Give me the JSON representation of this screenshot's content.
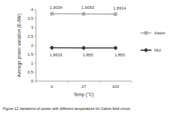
{
  "chart_data": {
    "type": "line",
    "stacked": true,
    "data_labels": true,
    "grid": false,
    "legend": "right",
    "caption": "Figure 12 Variations of power with different temperature for Galois field circuit.",
    "x_label": "Temp (°C)",
    "y_label": "Average power variation (E-6W)",
    "categories": [
      "0",
      "27",
      "100"
    ],
    "ylim": [
      0,
      4
    ],
    "yticks": [
      0,
      0.5,
      1,
      1.5,
      2,
      2.5,
      3,
      3.5,
      4
    ],
    "series": [
      {
        "name": "Mul",
        "color": "#333333",
        "marker": "diamond",
        "values": [
          1.8633,
          1.855,
          1.855
        ]
      },
      {
        "name": "Adder",
        "color": "#aaaaaa",
        "marker": "square",
        "values": [
          1.9034,
          1.9053,
          1.8914
        ]
      }
    ]
  }
}
